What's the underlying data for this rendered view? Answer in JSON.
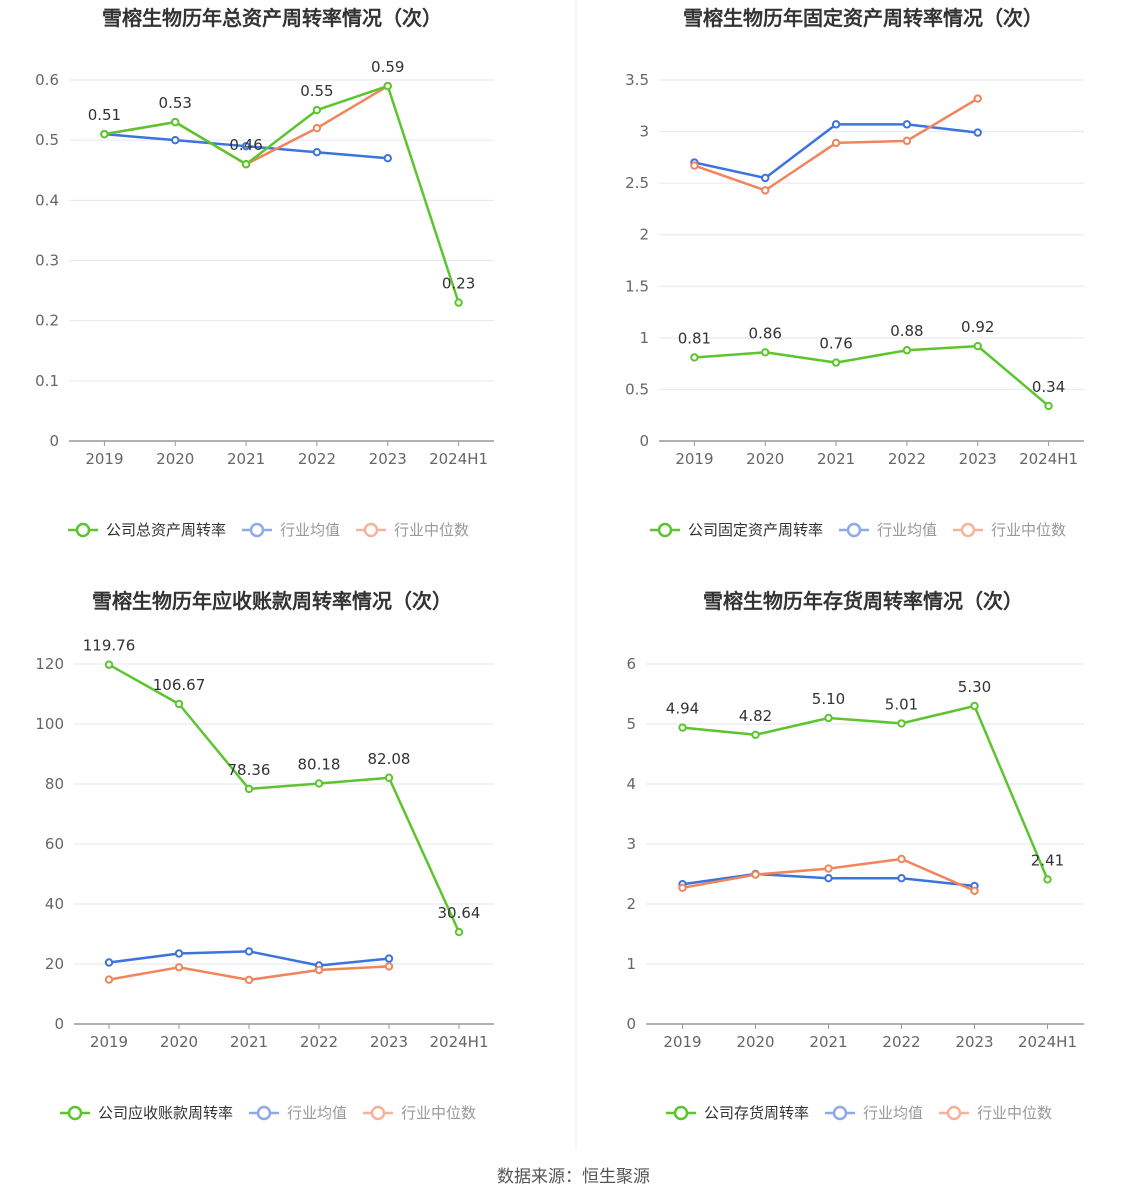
{
  "colors": {
    "company": "#5cc52e",
    "avg": "#3d73dd",
    "median": "#f0855c",
    "avg_legend": "#8fa9ea",
    "median_legend": "#f4b39a",
    "grid": "#e3e7f0",
    "axis": "#999999",
    "tick": "#666666",
    "label": "#333333"
  },
  "source": "数据来源：恒生聚源",
  "chart_data": [
    {
      "type": "line",
      "title": "雪榕生物历年总资产周转率情况（次）",
      "categories": [
        "2019",
        "2020",
        "2021",
        "2022",
        "2023",
        "2024H1"
      ],
      "ylim": [
        0,
        0.6
      ],
      "yticks": [
        "0",
        "0.1",
        "0.2",
        "0.3",
        "0.4",
        "0.5",
        "0.6"
      ],
      "legend_position": "bottom",
      "series": [
        {
          "name": "公司总资产周转率",
          "role": "company",
          "values": [
            0.51,
            0.53,
            0.46,
            0.55,
            0.59,
            0.23
          ],
          "labels": [
            "0.51",
            "0.53",
            "0.46",
            "0.55",
            "0.59",
            "0.23"
          ]
        },
        {
          "name": "行业均值",
          "role": "avg",
          "values": [
            0.51,
            0.5,
            0.49,
            0.48,
            0.47,
            null
          ]
        },
        {
          "name": "行业中位数",
          "role": "median",
          "values": [
            0.51,
            0.53,
            0.46,
            0.52,
            0.59,
            null
          ]
        }
      ]
    },
    {
      "type": "line",
      "title": "雪榕生物历年固定资产周转率情况（次）",
      "categories": [
        "2019",
        "2020",
        "2021",
        "2022",
        "2023",
        "2024H1"
      ],
      "ylim": [
        0,
        3.5
      ],
      "yticks": [
        "0",
        "0.5",
        "1",
        "1.5",
        "2",
        "2.5",
        "3",
        "3.5"
      ],
      "legend_position": "bottom",
      "series": [
        {
          "name": "公司固定资产周转率",
          "role": "company",
          "values": [
            0.81,
            0.86,
            0.76,
            0.88,
            0.92,
            0.34
          ],
          "labels": [
            "0.81",
            "0.86",
            "0.76",
            "0.88",
            "0.92",
            "0.34"
          ]
        },
        {
          "name": "行业均值",
          "role": "avg",
          "values": [
            2.7,
            2.55,
            3.07,
            3.07,
            2.99,
            null
          ]
        },
        {
          "name": "行业中位数",
          "role": "median",
          "values": [
            2.67,
            2.43,
            2.89,
            2.91,
            3.32,
            null
          ]
        }
      ]
    },
    {
      "type": "line",
      "title": "雪榕生物历年应收账款周转率情况（次）",
      "categories": [
        "2019",
        "2020",
        "2021",
        "2022",
        "2023",
        "2024H1"
      ],
      "ylim": [
        0,
        120
      ],
      "yticks": [
        "0",
        "20",
        "40",
        "60",
        "80",
        "100",
        "120"
      ],
      "legend_position": "bottom",
      "series": [
        {
          "name": "公司应收账款周转率",
          "role": "company",
          "values": [
            119.76,
            106.67,
            78.36,
            80.18,
            82.08,
            30.64
          ],
          "labels": [
            "119.76",
            "106.67",
            "78.36",
            "80.18",
            "82.08",
            "30.64"
          ]
        },
        {
          "name": "行业均值",
          "role": "avg",
          "values": [
            20.5,
            23.5,
            24.2,
            19.5,
            21.8,
            null
          ]
        },
        {
          "name": "行业中位数",
          "role": "median",
          "values": [
            14.8,
            18.9,
            14.7,
            18.0,
            19.2,
            null
          ]
        }
      ]
    },
    {
      "type": "line",
      "title": "雪榕生物历年存货周转率情况（次）",
      "categories": [
        "2019",
        "2020",
        "2021",
        "2022",
        "2023",
        "2024H1"
      ],
      "ylim": [
        0,
        6
      ],
      "yticks": [
        "0",
        "1",
        "2",
        "3",
        "4",
        "5",
        "6"
      ],
      "legend_position": "bottom",
      "series": [
        {
          "name": "公司存货周转率",
          "role": "company",
          "values": [
            4.94,
            4.82,
            5.1,
            5.01,
            5.3,
            2.41
          ],
          "labels": [
            "4.94",
            "4.82",
            "5.10",
            "5.01",
            "5.30",
            "2.41"
          ]
        },
        {
          "name": "行业均值",
          "role": "avg",
          "values": [
            2.33,
            2.5,
            2.43,
            2.43,
            2.3,
            null
          ]
        },
        {
          "name": "行业中位数",
          "role": "median",
          "values": [
            2.27,
            2.49,
            2.59,
            2.75,
            2.22,
            null
          ]
        }
      ]
    }
  ]
}
